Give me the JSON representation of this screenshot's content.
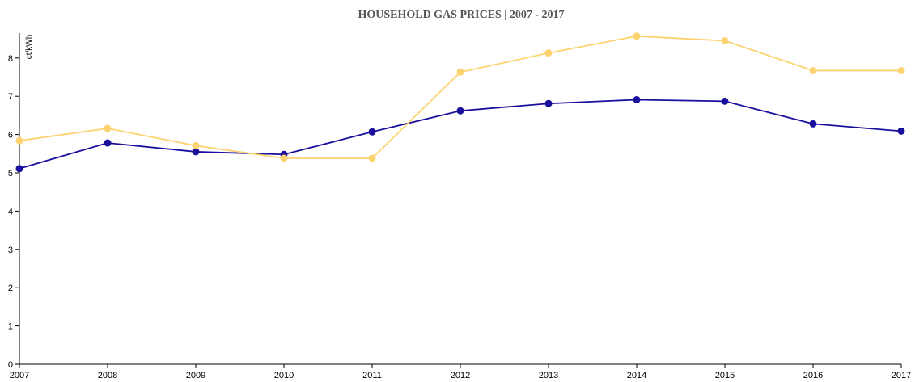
{
  "chart_data": {
    "type": "line",
    "title": "HOUSEHOLD GAS PRICES | 2007 - 2017",
    "y_label": "ct/kWh",
    "x": [
      2007,
      2008,
      2009,
      2010,
      2011,
      2012,
      2013,
      2014,
      2015,
      2016,
      2017
    ],
    "series": [
      {
        "color": "#1a0f9c",
        "values": [
          5.11,
          5.78,
          5.55,
          5.48,
          6.07,
          6.62,
          6.81,
          6.91,
          6.87,
          6.28,
          6.09
        ]
      },
      {
        "color": "#fdd372",
        "values": [
          5.84,
          6.16,
          5.71,
          5.38,
          5.38,
          7.63,
          8.13,
          8.57,
          8.45,
          7.67,
          7.67
        ]
      }
    ],
    "xlim": [
      2007,
      2017
    ],
    "xticks": [
      2007,
      2008,
      2009,
      2010,
      2011,
      2012,
      2013,
      2014,
      2015,
      2016,
      2017
    ],
    "ylim": [
      0,
      8.65
    ],
    "yticks": [
      0,
      1,
      2,
      3,
      4,
      5,
      6,
      7,
      8
    ]
  }
}
